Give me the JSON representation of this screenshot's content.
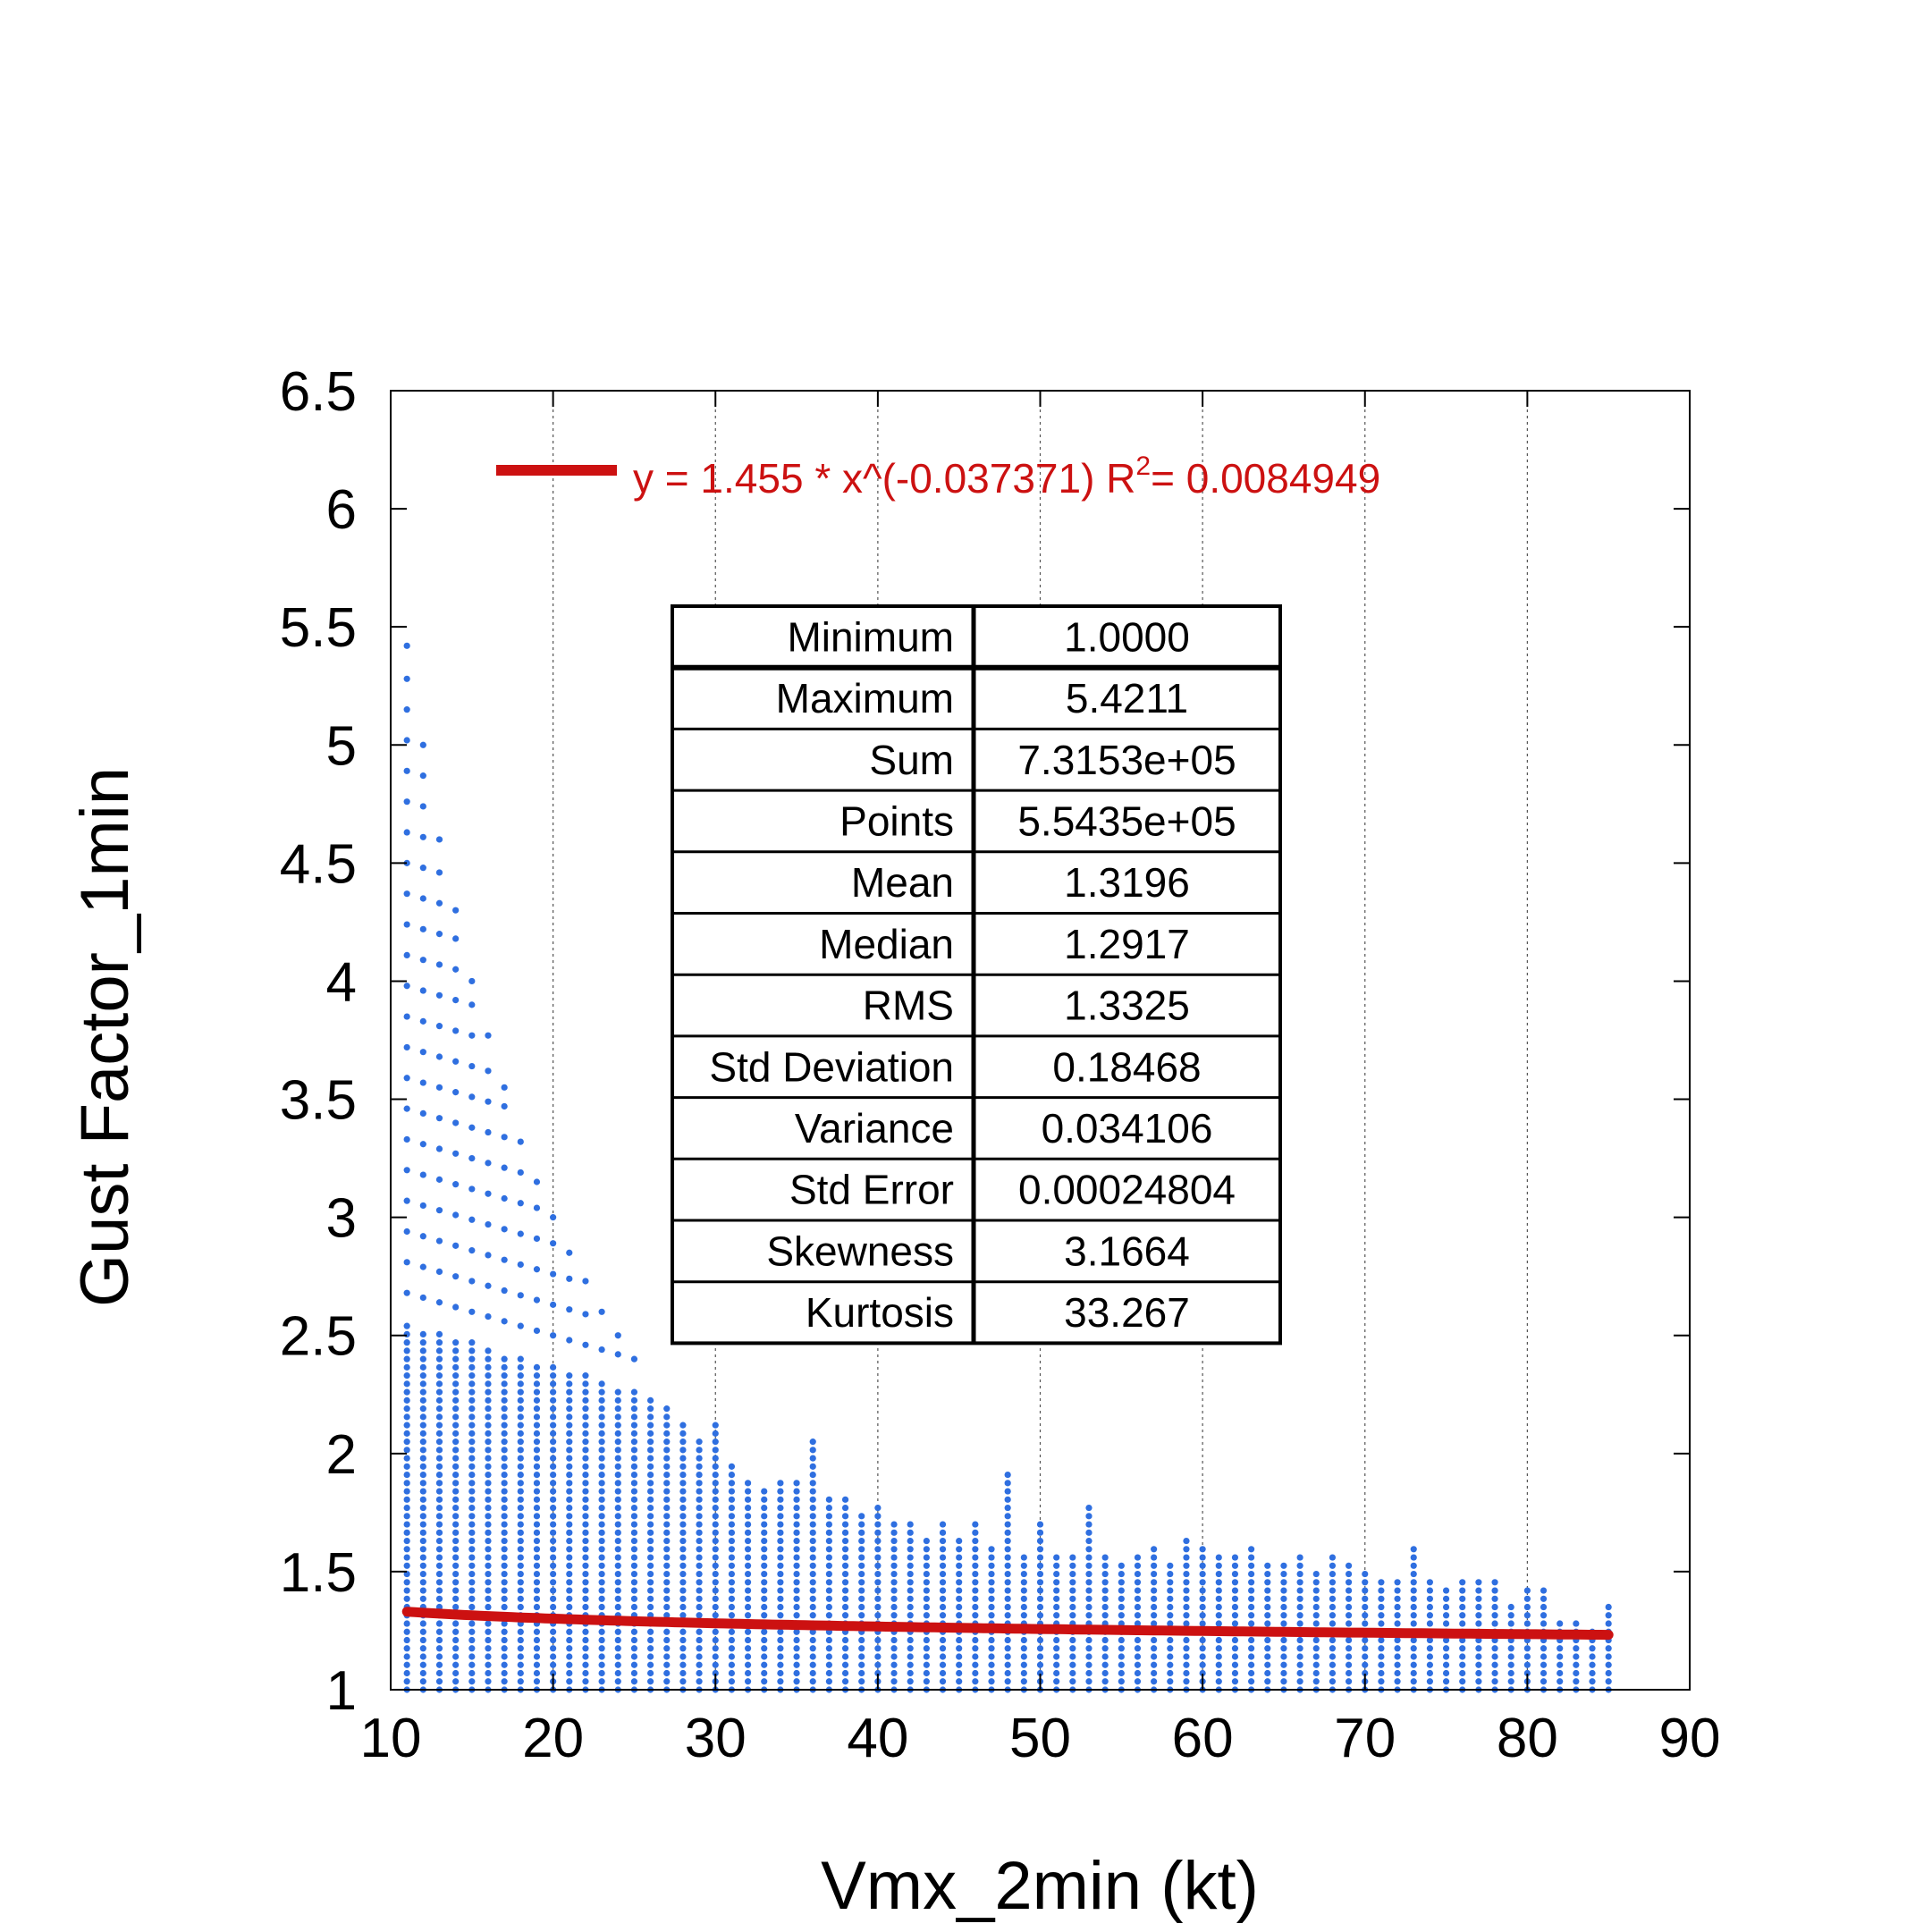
{
  "chart_data": {
    "type": "scatter",
    "title": "",
    "xlabel": "Vmx_2min (kt)",
    "ylabel": "Gust Factor_1min",
    "xlim": [
      10,
      90
    ],
    "ylim": [
      1,
      6.5
    ],
    "xticks": [
      "10",
      "20",
      "30",
      "40",
      "50",
      "60",
      "70",
      "80",
      "90"
    ],
    "yticks": [
      "1",
      "1.5",
      "2",
      "2.5",
      "3",
      "3.5",
      "4",
      "4.5",
      "5",
      "5.5",
      "6",
      "6.5"
    ],
    "grid": "vertical dashed",
    "colors": {
      "points": "#2f6fe0",
      "fit": "#cc1111"
    },
    "scatter": {
      "name": "Gust Factor_1min",
      "x_min": 11,
      "x_max": 85,
      "x_step": 1,
      "y_min": 1.0,
      "y_max_by_x": [
        [
          11,
          5.42
        ],
        [
          12,
          5.0
        ],
        [
          13,
          4.6
        ],
        [
          14,
          4.3
        ],
        [
          15,
          4.0
        ],
        [
          16,
          3.77
        ],
        [
          17,
          3.55
        ],
        [
          18,
          3.32
        ],
        [
          19,
          3.15
        ],
        [
          20,
          3.0
        ],
        [
          21,
          2.85
        ],
        [
          22,
          2.73
        ],
        [
          23,
          2.6
        ],
        [
          24,
          2.5
        ],
        [
          25,
          2.4
        ],
        [
          26,
          2.3
        ],
        [
          27,
          2.2
        ],
        [
          28,
          2.15
        ],
        [
          29,
          2.05
        ],
        [
          30,
          2.15
        ],
        [
          31,
          1.95
        ],
        [
          32,
          1.9
        ],
        [
          33,
          1.87
        ],
        [
          34,
          1.88
        ],
        [
          35,
          1.9
        ],
        [
          36,
          2.05
        ],
        [
          37,
          1.82
        ],
        [
          38,
          1.82
        ],
        [
          39,
          1.75
        ],
        [
          40,
          1.77
        ],
        [
          41,
          1.7
        ],
        [
          42,
          1.72
        ],
        [
          43,
          1.66
        ],
        [
          44,
          1.73
        ],
        [
          45,
          1.65
        ],
        [
          46,
          1.7
        ],
        [
          47,
          1.62
        ],
        [
          48,
          1.92
        ],
        [
          49,
          1.58
        ],
        [
          50,
          1.7
        ],
        [
          51,
          1.56
        ],
        [
          52,
          1.58
        ],
        [
          53,
          1.8
        ],
        [
          54,
          1.57
        ],
        [
          55,
          1.55
        ],
        [
          56,
          1.56
        ],
        [
          57,
          1.6
        ],
        [
          58,
          1.55
        ],
        [
          59,
          1.63
        ],
        [
          60,
          1.6
        ],
        [
          61,
          1.57
        ],
        [
          62,
          1.56
        ],
        [
          63,
          1.62
        ],
        [
          64,
          1.53
        ],
        [
          65,
          1.53
        ],
        [
          66,
          1.58
        ],
        [
          67,
          1.5
        ],
        [
          68,
          1.58
        ],
        [
          69,
          1.53
        ],
        [
          70,
          1.5
        ],
        [
          71,
          1.47
        ],
        [
          72,
          1.47
        ],
        [
          73,
          1.6
        ],
        [
          74,
          1.46
        ],
        [
          75,
          1.45
        ],
        [
          76,
          1.48
        ],
        [
          77,
          1.47
        ],
        [
          78,
          1.46
        ],
        [
          79,
          1.38
        ],
        [
          80,
          1.43
        ],
        [
          81,
          1.43
        ],
        [
          82,
          1.3
        ],
        [
          83,
          1.3
        ],
        [
          84,
          1.26
        ],
        [
          85,
          1.36
        ]
      ]
    },
    "fit": {
      "label": "y = 1.455 * x^(-0.037371)   R",
      "r2_exponent": "2",
      "r2_value": "= 0.0084949",
      "a": 1.455,
      "b": -0.037371,
      "x_range": [
        11,
        85
      ]
    },
    "stats_table": [
      {
        "label": "Minimum",
        "value": "1.0000"
      },
      {
        "label": "Maximum",
        "value": "5.4211"
      },
      {
        "label": "Sum",
        "value": "7.3153e+05"
      },
      {
        "label": "Points",
        "value": "5.5435e+05"
      },
      {
        "label": "Mean",
        "value": "1.3196"
      },
      {
        "label": "Median",
        "value": "1.2917"
      },
      {
        "label": "RMS",
        "value": "1.3325"
      },
      {
        "label": "Std Deviation",
        "value": "0.18468"
      },
      {
        "label": "Variance",
        "value": "0.034106"
      },
      {
        "label": "Std Error",
        "value": "0.00024804"
      },
      {
        "label": "Skewness",
        "value": "3.1664"
      },
      {
        "label": "Kurtosis",
        "value": "33.267"
      }
    ]
  }
}
